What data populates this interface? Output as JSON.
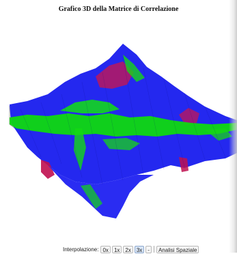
{
  "window": {
    "title": "Grafico 3D della Matrice di Correlazione"
  },
  "controls": {
    "interpolation_label": "Interpolazione:",
    "buttons": [
      {
        "label": "0x",
        "active": false
      },
      {
        "label": "1x",
        "active": false
      },
      {
        "label": "2x",
        "active": false
      },
      {
        "label": "3x",
        "active": true
      },
      {
        "label": "-",
        "active": false
      }
    ],
    "analysis_button": "Analisi Spaziale"
  },
  "surface": {
    "colormap": [
      "#2a2cf0",
      "#00e000",
      "#c01050"
    ],
    "axis_line_color": "#9a9a9a"
  }
}
